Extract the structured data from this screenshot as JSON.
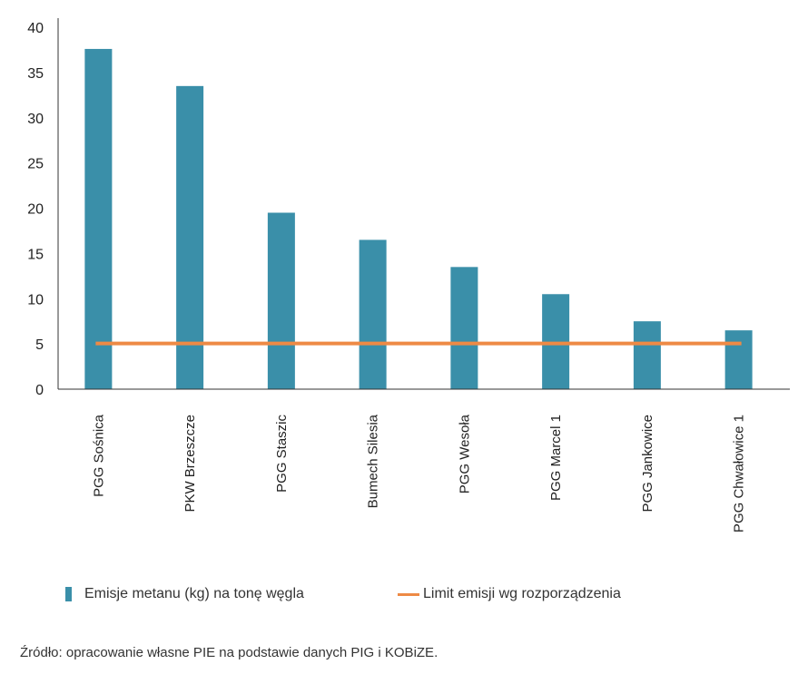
{
  "chart_data": {
    "type": "bar",
    "categories": [
      "PGG Sośnica",
      "PKW Brzeszcze",
      "PGG Staszic",
      "Bumech Silesia",
      "PGG Wesoła",
      "PGG Marcel 1",
      "PGG Jankowice",
      "PGG Chwałowice 1"
    ],
    "series": [
      {
        "name": "Emisje metanu (kg) na tonę węgla",
        "type": "bar",
        "color": "#3a8fa9",
        "values": [
          37.6,
          33.5,
          19.5,
          16.5,
          13.5,
          10.5,
          7.5,
          6.5
        ]
      },
      {
        "name": "Limit emisji wg rozporządzenia",
        "type": "line",
        "color": "#ee8a45",
        "values": [
          5,
          5,
          5,
          5,
          5,
          5,
          5,
          5
        ]
      }
    ],
    "yticks": [
      "0",
      "5",
      "10",
      "15",
      "20",
      "25",
      "30",
      "35",
      "40"
    ],
    "ylim": [
      0,
      40
    ],
    "grid": false,
    "legend_position": "bottom"
  },
  "source_text": "Źródło: opracowanie własne PIE na podstawie danych PIG i KOBiZE."
}
